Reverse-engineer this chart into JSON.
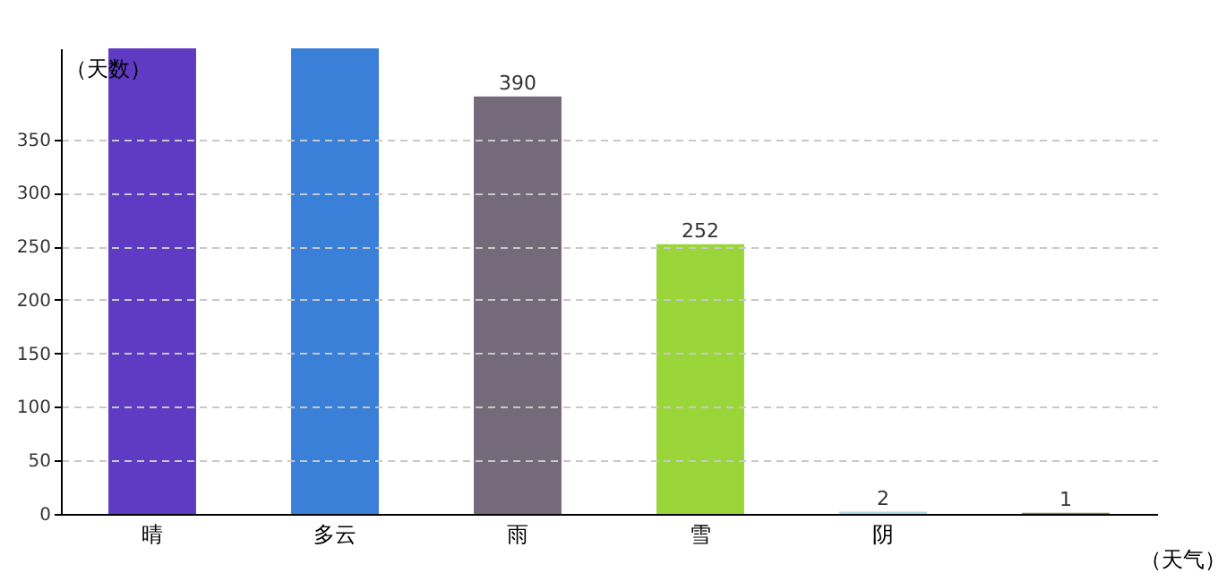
{
  "chart_data": {
    "type": "bar",
    "xlabel": "（天气）",
    "ylabel": "（天数）",
    "categories": [
      "晴",
      "多云",
      "雨",
      "雪",
      "阴",
      null
    ],
    "values": [
      435,
      435,
      390,
      252,
      2,
      1
    ],
    "colors": [
      "#5f3bc4",
      "#3a80d8",
      "#766a7a",
      "#9ad63a",
      "#a8d8e8",
      "#8a8a3a"
    ],
    "value_labels": [
      null,
      null,
      "390",
      "252",
      "2",
      "1"
    ],
    "ylim": [
      0,
      435
    ],
    "yticks": [
      0,
      50,
      100,
      150,
      200,
      250,
      300,
      350
    ],
    "grid": "y"
  }
}
